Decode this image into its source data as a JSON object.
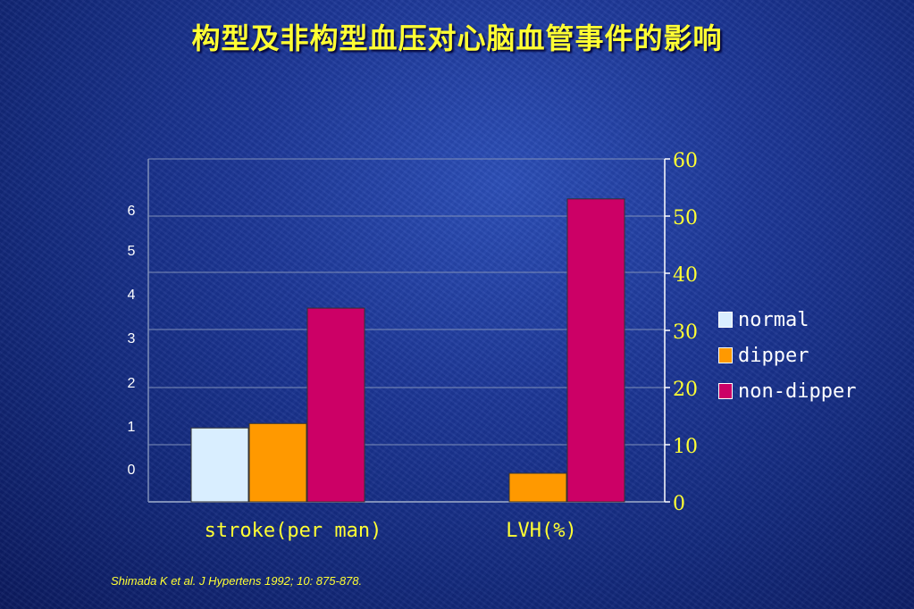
{
  "slide": {
    "title": "构型及非构型血压对心脑血管事件的影响",
    "citation": "Shimada K et al.  J Hypertens 1992; 10: 875-878."
  },
  "colors": {
    "title": "#ffff33",
    "normal": "#d9eeff",
    "dipper": "#ff9900",
    "non_dipper": "#cc0066",
    "gridline": "#7f8fb8",
    "axis_text": "#ffffff",
    "right_axis_text": "#ffff33"
  },
  "chart_data": {
    "type": "bar",
    "categories": [
      "stroke(per man)",
      "LVH(%)"
    ],
    "series": [
      {
        "name": "normal",
        "values": [
          0.9,
          null
        ]
      },
      {
        "name": "dipper",
        "values": [
          1.0,
          5
        ]
      },
      {
        "name": "non-dipper",
        "values": [
          3.6,
          53
        ]
      }
    ],
    "left_axis": {
      "ticks": [
        "0",
        "1",
        "2",
        "3",
        "4",
        "5",
        "6"
      ],
      "scale": "stroke(per man)"
    },
    "right_axis": {
      "ticks": [
        "0",
        "10",
        "20",
        "30",
        "40",
        "50",
        "60"
      ],
      "ylim": [
        0,
        60
      ],
      "scale": "LVH(%)"
    },
    "grid": true,
    "legend_position": "right"
  }
}
